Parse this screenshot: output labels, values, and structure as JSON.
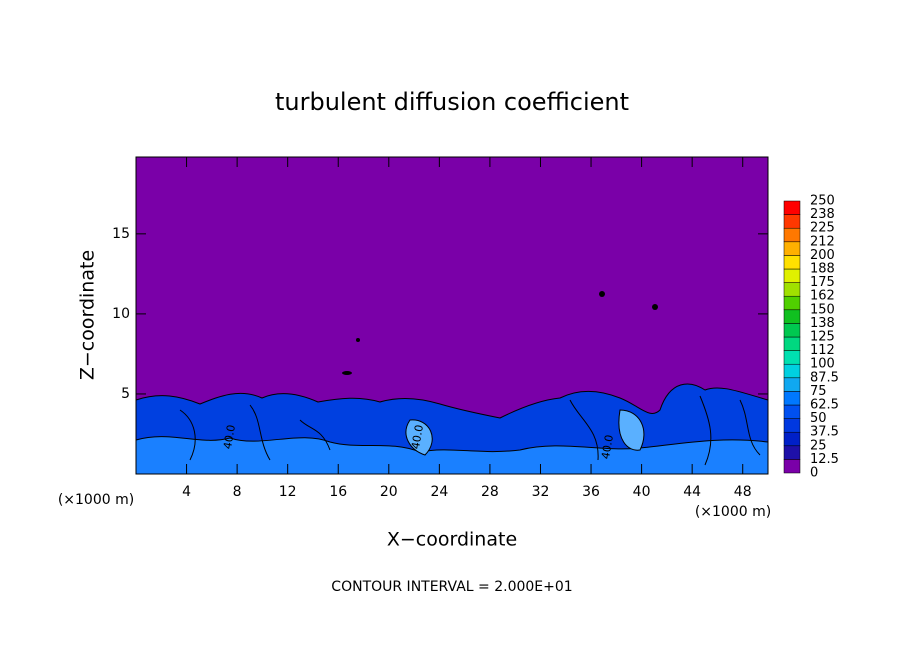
{
  "chart_data": {
    "type": "contour",
    "title": "turbulent diffusion coefficient",
    "x_label": "X−coordinate",
    "y_label": "Z−coordinate",
    "x_unit": "(×1000 m)",
    "y_unit": "(×1000 m)",
    "footnote": "CONTOUR INTERVAL = 2.000E+01",
    "contour_labels": [
      "40.0",
      "40.0",
      "40.0"
    ],
    "xlim": [
      0,
      50
    ],
    "xticks": [
      4,
      8,
      12,
      16,
      20,
      24,
      28,
      32,
      36,
      40,
      44,
      48
    ],
    "ylim": [
      0,
      19.8
    ],
    "yticks": [
      5,
      10,
      15
    ],
    "colorbar_levels": [
      0,
      12.5,
      25,
      37.5,
      50,
      62.5,
      75,
      87.5,
      100,
      112,
      125,
      138,
      150,
      162,
      175,
      188,
      200,
      212,
      225,
      238,
      250
    ],
    "colorbar_colors": [
      "#7a00a8",
      "#1e10a8",
      "#0020c8",
      "#0038e0",
      "#0050f0",
      "#0078ff",
      "#10a8f0",
      "#00d0e0",
      "#00e0b0",
      "#00d880",
      "#00c850",
      "#10c020",
      "#50d000",
      "#a0e000",
      "#e0f000",
      "#ffe000",
      "#ffb000",
      "#ff7800",
      "#ff3800",
      "#ff0000"
    ]
  }
}
